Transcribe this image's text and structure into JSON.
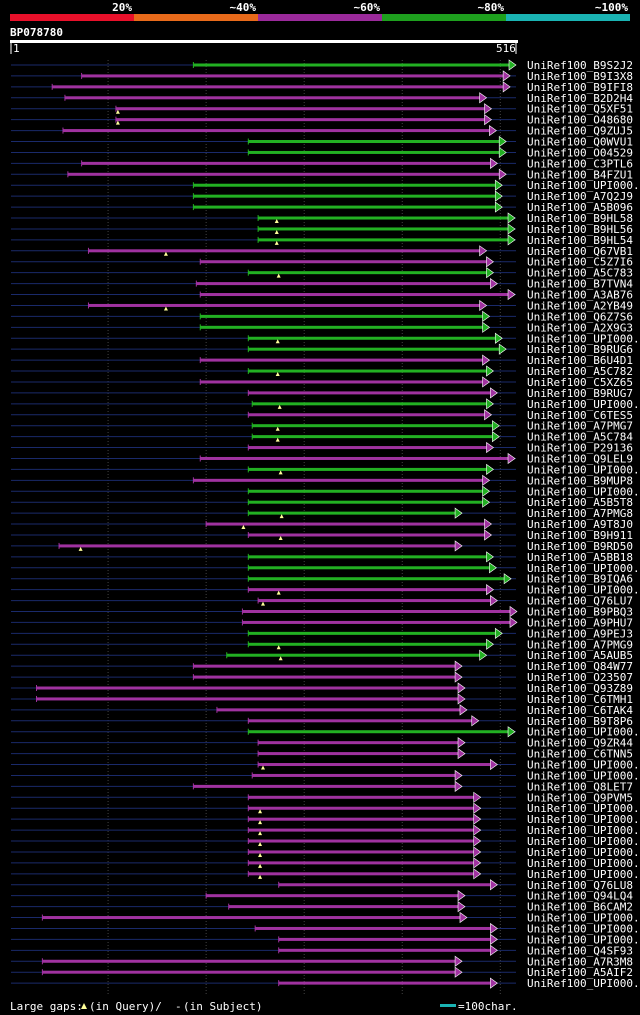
{
  "chart_data": {
    "type": "alignment-overview",
    "query_id": "BP078780",
    "query_range": [
      1,
      516
    ],
    "identity_legend": [
      {
        "label": "20%",
        "color": "#e8102a"
      },
      {
        "label": "~40%",
        "color": "#e86a1a"
      },
      {
        "label": "~60%",
        "color": "#9b2a9b"
      },
      {
        "label": "~80%",
        "color": "#1ea01e"
      },
      {
        "label": "~100%",
        "color": "#1ab3b3"
      }
    ],
    "colors": {
      "match_green": "#22b022",
      "match_purple": "#a032a0",
      "query_line": "#1a2a6a",
      "grid": "#444444",
      "scale_bar": "#ffffff",
      "gap_marker": "#ffff99",
      "legend_bar": "#1ab3b3"
    },
    "footer": {
      "gaps_text": "Large gaps:",
      "in_query": "(in Query)/",
      "dash": "-",
      "in_subject": " (in Subject)",
      "scale_text": "=100char."
    },
    "hits": [
      {
        "name": "UniRef100_B9S2J2",
        "start": 1,
        "end": 516,
        "qs": 187,
        "qe": 516,
        "color": "green",
        "gap": null
      },
      {
        "name": "UniRef100_B9I3X8",
        "start": 1,
        "end": 516,
        "qs": 73,
        "qe": 510,
        "color": "purple",
        "gap": null
      },
      {
        "name": "UniRef100_B9IFI8",
        "start": 1,
        "end": 516,
        "qs": 43,
        "qe": 510,
        "color": "purple",
        "gap": null
      },
      {
        "name": "UniRef100_B2D2H4",
        "start": 1,
        "end": 516,
        "qs": 56,
        "qe": 486,
        "color": "purple",
        "gap": null
      },
      {
        "name": "UniRef100_Q5XF51",
        "start": 1,
        "end": 516,
        "qs": 108,
        "qe": 491,
        "color": "purple",
        "gap": 110
      },
      {
        "name": "UniRef100_O48680",
        "start": 1,
        "end": 516,
        "qs": 108,
        "qe": 491,
        "color": "purple",
        "gap": 110
      },
      {
        "name": "UniRef100_Q9ZUJ5",
        "start": 1,
        "end": 516,
        "qs": 54,
        "qe": 496,
        "color": "purple",
        "gap": null
      },
      {
        "name": "UniRef100_Q0WVU1",
        "start": 1,
        "end": 516,
        "qs": 243,
        "qe": 506,
        "color": "green",
        "gap": null
      },
      {
        "name": "UniRef100_O04529",
        "start": 1,
        "end": 516,
        "qs": 243,
        "qe": 506,
        "color": "green",
        "gap": null
      },
      {
        "name": "UniRef100_C3PTL6",
        "start": 1,
        "end": 516,
        "qs": 73,
        "qe": 497,
        "color": "purple",
        "gap": null
      },
      {
        "name": "UniRef100_B4FZU1",
        "start": 1,
        "end": 516,
        "qs": 59,
        "qe": 506,
        "color": "purple",
        "gap": null
      },
      {
        "name": "UniRef100_UPI000...",
        "start": 1,
        "end": 516,
        "qs": 187,
        "qe": 502,
        "color": "green",
        "gap": null
      },
      {
        "name": "UniRef100_A7Q2J9",
        "start": 1,
        "end": 516,
        "qs": 187,
        "qe": 502,
        "color": "green",
        "gap": null
      },
      {
        "name": "UniRef100_A5B096",
        "start": 1,
        "end": 516,
        "qs": 187,
        "qe": 502,
        "color": "green",
        "gap": null
      },
      {
        "name": "UniRef100_B9HL58",
        "start": 1,
        "end": 516,
        "qs": 253,
        "qe": 515,
        "color": "green",
        "gap": 272
      },
      {
        "name": "UniRef100_B9HL56",
        "start": 1,
        "end": 516,
        "qs": 253,
        "qe": 515,
        "color": "green",
        "gap": 272
      },
      {
        "name": "UniRef100_B9HL54",
        "start": 1,
        "end": 516,
        "qs": 253,
        "qe": 515,
        "color": "green",
        "gap": 272
      },
      {
        "name": "UniRef100_Q67VB1",
        "start": 1,
        "end": 516,
        "qs": 80,
        "qe": 486,
        "color": "purple",
        "gap": 159
      },
      {
        "name": "UniRef100_C5Z7I6",
        "start": 1,
        "end": 516,
        "qs": 194,
        "qe": 493,
        "color": "purple",
        "gap": null
      },
      {
        "name": "UniRef100_A5C783",
        "start": 1,
        "end": 516,
        "qs": 243,
        "qe": 493,
        "color": "green",
        "gap": 274
      },
      {
        "name": "UniRef100_B7TVN4",
        "start": 1,
        "end": 516,
        "qs": 190,
        "qe": 497,
        "color": "purple",
        "gap": null
      },
      {
        "name": "UniRef100_A3AB76",
        "start": 1,
        "end": 516,
        "qs": 194,
        "qe": 515,
        "color": "purple",
        "gap": null
      },
      {
        "name": "UniRef100_A2YB49",
        "start": 1,
        "end": 516,
        "qs": 80,
        "qe": 486,
        "color": "purple",
        "gap": 159
      },
      {
        "name": "UniRef100_Q6Z7S6",
        "start": 1,
        "end": 516,
        "qs": 194,
        "qe": 489,
        "color": "green",
        "gap": null
      },
      {
        "name": "UniRef100_A2X9G3",
        "start": 1,
        "end": 516,
        "qs": 194,
        "qe": 489,
        "color": "green",
        "gap": null
      },
      {
        "name": "UniRef100_UPI000...",
        "start": 1,
        "end": 516,
        "qs": 243,
        "qe": 502,
        "color": "green",
        "gap": 273
      },
      {
        "name": "UniRef100_B9RUG6",
        "start": 1,
        "end": 516,
        "qs": 243,
        "qe": 506,
        "color": "green",
        "gap": null
      },
      {
        "name": "UniRef100_B6U4D1",
        "start": 1,
        "end": 516,
        "qs": 194,
        "qe": 489,
        "color": "purple",
        "gap": null
      },
      {
        "name": "UniRef100_A5C782",
        "start": 1,
        "end": 516,
        "qs": 243,
        "qe": 493,
        "color": "green",
        "gap": 273
      },
      {
        "name": "UniRef100_C5XZ65",
        "start": 1,
        "end": 516,
        "qs": 194,
        "qe": 489,
        "color": "purple",
        "gap": null
      },
      {
        "name": "UniRef100_B9RUG7",
        "start": 1,
        "end": 516,
        "qs": 243,
        "qe": 497,
        "color": "purple",
        "gap": null
      },
      {
        "name": "UniRef100_UPI000...",
        "start": 1,
        "end": 516,
        "qs": 247,
        "qe": 493,
        "color": "green",
        "gap": 275
      },
      {
        "name": "UniRef100_C6TES5",
        "start": 1,
        "end": 516,
        "qs": 243,
        "qe": 491,
        "color": "purple",
        "gap": null
      },
      {
        "name": "UniRef100_A7PMG7",
        "start": 1,
        "end": 516,
        "qs": 247,
        "qe": 499,
        "color": "green",
        "gap": 273
      },
      {
        "name": "UniRef100_A5C784",
        "start": 1,
        "end": 516,
        "qs": 247,
        "qe": 499,
        "color": "green",
        "gap": 273
      },
      {
        "name": "UniRef100_P29136",
        "start": 1,
        "end": 516,
        "qs": 243,
        "qe": 493,
        "color": "purple",
        "gap": null
      },
      {
        "name": "UniRef100_Q9LEL9",
        "start": 1,
        "end": 516,
        "qs": 194,
        "qe": 515,
        "color": "purple",
        "gap": null
      },
      {
        "name": "UniRef100_UPI000...",
        "start": 1,
        "end": 516,
        "qs": 243,
        "qe": 493,
        "color": "green",
        "gap": 276
      },
      {
        "name": "UniRef100_B9MUP8",
        "start": 1,
        "end": 516,
        "qs": 187,
        "qe": 489,
        "color": "purple",
        "gap": null
      },
      {
        "name": "UniRef100_UPI000...",
        "start": 1,
        "end": 516,
        "qs": 243,
        "qe": 489,
        "color": "green",
        "gap": null
      },
      {
        "name": "UniRef100_A5B5T8",
        "start": 1,
        "end": 516,
        "qs": 243,
        "qe": 489,
        "color": "green",
        "gap": null
      },
      {
        "name": "UniRef100_A7PMG8",
        "start": 1,
        "end": 516,
        "qs": 243,
        "qe": 461,
        "color": "green",
        "gap": 277
      },
      {
        "name": "UniRef100_A9T8J0",
        "start": 1,
        "end": 516,
        "qs": 200,
        "qe": 491,
        "color": "purple",
        "gap": 238
      },
      {
        "name": "UniRef100_B9H911",
        "start": 1,
        "end": 516,
        "qs": 243,
        "qe": 491,
        "color": "purple",
        "gap": 276
      },
      {
        "name": "UniRef100_B9RD50",
        "start": 1,
        "end": 516,
        "qs": 50,
        "qe": 461,
        "color": "purple",
        "gap": 72
      },
      {
        "name": "UniRef100_A5BB18",
        "start": 1,
        "end": 516,
        "qs": 243,
        "qe": 493,
        "color": "green",
        "gap": null
      },
      {
        "name": "UniRef100_UPI000...",
        "start": 1,
        "end": 516,
        "qs": 243,
        "qe": 496,
        "color": "green",
        "gap": null
      },
      {
        "name": "UniRef100_B9IQA6",
        "start": 1,
        "end": 516,
        "qs": 243,
        "qe": 511,
        "color": "green",
        "gap": null
      },
      {
        "name": "UniRef100_UPI000...",
        "start": 1,
        "end": 516,
        "qs": 243,
        "qe": 493,
        "color": "purple",
        "gap": 274
      },
      {
        "name": "UniRef100_Q76LU7",
        "start": 1,
        "end": 516,
        "qs": 253,
        "qe": 497,
        "color": "purple",
        "gap": 258
      },
      {
        "name": "UniRef100_B9PBQ3",
        "start": 1,
        "end": 516,
        "qs": 237,
        "qe": 517,
        "color": "purple",
        "gap": null
      },
      {
        "name": "UniRef100_A9PHU7",
        "start": 1,
        "end": 516,
        "qs": 237,
        "qe": 517,
        "color": "purple",
        "gap": null
      },
      {
        "name": "UniRef100_A9PEJ3",
        "start": 1,
        "end": 516,
        "qs": 243,
        "qe": 502,
        "color": "green",
        "gap": null
      },
      {
        "name": "UniRef100_A7PMG9",
        "start": 1,
        "end": 516,
        "qs": 243,
        "qe": 493,
        "color": "green",
        "gap": 274
      },
      {
        "name": "UniRef100_A5AUB5",
        "start": 1,
        "end": 516,
        "qs": 221,
        "qe": 486,
        "color": "green",
        "gap": 276
      },
      {
        "name": "UniRef100_Q84W77",
        "start": 1,
        "end": 516,
        "qs": 187,
        "qe": 461,
        "color": "purple",
        "gap": null
      },
      {
        "name": "UniRef100_O23507",
        "start": 1,
        "end": 516,
        "qs": 187,
        "qe": 461,
        "color": "purple",
        "gap": null
      },
      {
        "name": "UniRef100_Q93Z89",
        "start": 1,
        "end": 516,
        "qs": 27,
        "qe": 464,
        "color": "purple",
        "gap": null
      },
      {
        "name": "UniRef100_C6TMH1",
        "start": 1,
        "end": 516,
        "qs": 27,
        "qe": 464,
        "color": "purple",
        "gap": null
      },
      {
        "name": "UniRef100_C6TAK4",
        "start": 1,
        "end": 516,
        "qs": 211,
        "qe": 466,
        "color": "purple",
        "gap": null
      },
      {
        "name": "UniRef100_B9T8P6",
        "start": 1,
        "end": 516,
        "qs": 243,
        "qe": 478,
        "color": "purple",
        "gap": null
      },
      {
        "name": "UniRef100_UPI000...",
        "start": 1,
        "end": 516,
        "qs": 243,
        "qe": 515,
        "color": "green",
        "gap": null
      },
      {
        "name": "UniRef100_Q9ZR44",
        "start": 1,
        "end": 516,
        "qs": 253,
        "qe": 464,
        "color": "purple",
        "gap": null
      },
      {
        "name": "UniRef100_C6TNN5",
        "start": 1,
        "end": 516,
        "qs": 253,
        "qe": 464,
        "color": "purple",
        "gap": null
      },
      {
        "name": "UniRef100_UPI000...",
        "start": 1,
        "end": 516,
        "qs": 253,
        "qe": 497,
        "color": "purple",
        "gap": 258
      },
      {
        "name": "UniRef100_UPI000...",
        "start": 1,
        "end": 516,
        "qs": 247,
        "qe": 461,
        "color": "purple",
        "gap": null
      },
      {
        "name": "UniRef100_Q8LET7",
        "start": 1,
        "end": 516,
        "qs": 187,
        "qe": 461,
        "color": "purple",
        "gap": null
      },
      {
        "name": "UniRef100_Q9PVM5",
        "start": 1,
        "end": 516,
        "qs": 243,
        "qe": 480,
        "color": "purple",
        "gap": null
      },
      {
        "name": "UniRef100_UPI000...",
        "start": 1,
        "end": 516,
        "qs": 243,
        "qe": 480,
        "color": "purple",
        "gap": 255
      },
      {
        "name": "UniRef100_UPI000...",
        "start": 1,
        "end": 516,
        "qs": 243,
        "qe": 480,
        "color": "purple",
        "gap": 255
      },
      {
        "name": "UniRef100_UPI000...",
        "start": 1,
        "end": 516,
        "qs": 243,
        "qe": 480,
        "color": "purple",
        "gap": 255
      },
      {
        "name": "UniRef100_UPI000...",
        "start": 1,
        "end": 516,
        "qs": 243,
        "qe": 480,
        "color": "purple",
        "gap": 255
      },
      {
        "name": "UniRef100_UPI000...",
        "start": 1,
        "end": 516,
        "qs": 243,
        "qe": 480,
        "color": "purple",
        "gap": 255
      },
      {
        "name": "UniRef100_UPI000...",
        "start": 1,
        "end": 516,
        "qs": 243,
        "qe": 480,
        "color": "purple",
        "gap": 255
      },
      {
        "name": "UniRef100_UPI000...",
        "start": 1,
        "end": 516,
        "qs": 243,
        "qe": 480,
        "color": "purple",
        "gap": 255
      },
      {
        "name": "UniRef100_Q76LU8",
        "start": 1,
        "end": 516,
        "qs": 274,
        "qe": 497,
        "color": "purple",
        "gap": null
      },
      {
        "name": "UniRef100_Q94LQ4",
        "start": 1,
        "end": 516,
        "qs": 200,
        "qe": 464,
        "color": "purple",
        "gap": null
      },
      {
        "name": "UniRef100_B6CAM2",
        "start": 1,
        "end": 516,
        "qs": 223,
        "qe": 464,
        "color": "purple",
        "gap": null
      },
      {
        "name": "UniRef100_UPI000...",
        "start": 1,
        "end": 516,
        "qs": 33,
        "qe": 466,
        "color": "purple",
        "gap": null
      },
      {
        "name": "UniRef100_UPI000...",
        "start": 1,
        "end": 516,
        "qs": 250,
        "qe": 497,
        "color": "purple",
        "gap": null
      },
      {
        "name": "UniRef100_UPI000...",
        "start": 1,
        "end": 516,
        "qs": 274,
        "qe": 497,
        "color": "purple",
        "gap": null
      },
      {
        "name": "UniRef100_Q4SF93",
        "start": 1,
        "end": 516,
        "qs": 274,
        "qe": 497,
        "color": "purple",
        "gap": null
      },
      {
        "name": "UniRef100_A7R3M8",
        "start": 1,
        "end": 516,
        "qs": 33,
        "qe": 461,
        "color": "purple",
        "gap": null
      },
      {
        "name": "UniRef100_A5AIF2",
        "start": 1,
        "end": 516,
        "qs": 33,
        "qe": 461,
        "color": "purple",
        "gap": null
      },
      {
        "name": "UniRef100_UPI000...",
        "start": 1,
        "end": 516,
        "qs": 274,
        "qe": 497,
        "color": "purple",
        "gap": null
      }
    ]
  }
}
